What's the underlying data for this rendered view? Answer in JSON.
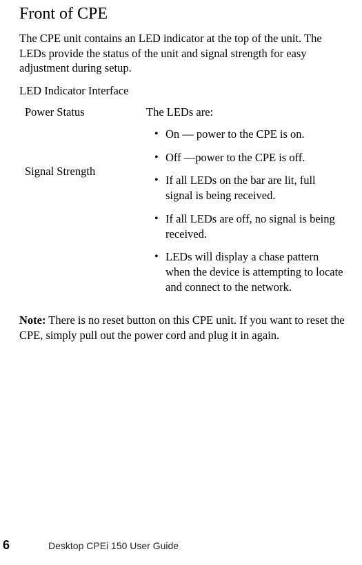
{
  "page": {
    "heading": "Front of CPE",
    "intro": "The CPE unit contains an LED indicator at the top of the unit. The LEDs provide the status of the unit and signal strength for easy adjustment during setup.",
    "subheading": "LED Indicator Interface",
    "leftCol": {
      "row1": "Power Status",
      "row2": "Signal Strength"
    },
    "rightCol": {
      "lead": "The LEDs are:",
      "bullets": [
        "On — power to the CPE is on.",
        "Off —power to the CPE is off.",
        "If all LEDs on the bar are lit, full signal is being received.",
        "If all LEDs are off, no signal is being received.",
        "LEDs will display a chase pattern when the device is attempting to locate and connect to the network."
      ]
    },
    "note": {
      "label": "Note:",
      "text": " There is no reset button on this CPE unit. If you want to reset the CPE, simply pull out the power cord and plug it in again."
    },
    "footer": {
      "pageNumber": "6",
      "title": "Desktop CPEi 150 User Guide"
    }
  }
}
